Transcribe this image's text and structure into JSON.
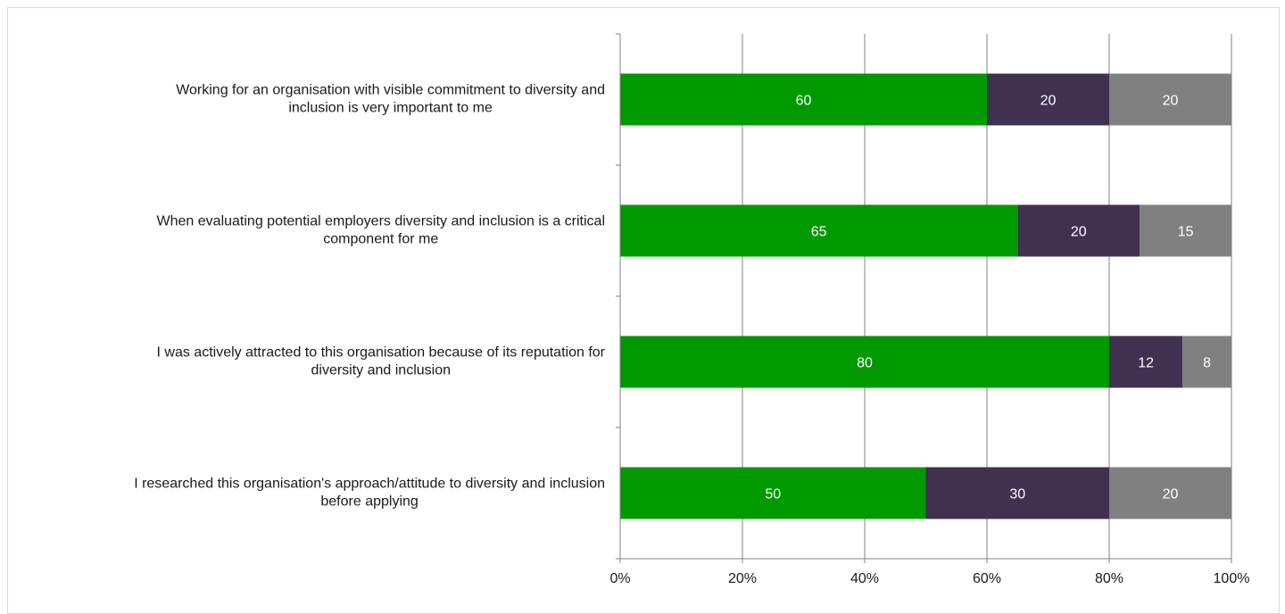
{
  "chart_data": {
    "type": "bar",
    "orientation": "horizontal",
    "stacked": "percent",
    "title": "",
    "xlabel": "",
    "ylabel": "",
    "xlim": [
      0,
      100
    ],
    "x_ticks": [
      "0%",
      "20%",
      "40%",
      "60%",
      "80%",
      "100%"
    ],
    "grid": true,
    "legend": "none",
    "categories": [
      "Working for an organisation with visible commitment to diversity and inclusion is very important to me",
      "When evaluating potential employers diversity and inclusion is a critical component for me",
      "I was actively attracted to this organisation because of its reputation for diversity and inclusion",
      "I researched this organisation's approach/attitude to diversity and inclusion before applying"
    ],
    "category_lines": [
      [
        "Working for an organisation with visible commitment to diversity and",
        "inclusion is very important to me"
      ],
      [
        "When evaluating potential employers diversity and inclusion is a critical",
        "component for me"
      ],
      [
        "I was actively attracted to this organisation because of its reputation for",
        "diversity and inclusion"
      ],
      [
        "I researched this organisation's approach/attitude to diversity and inclusion",
        "before applying"
      ]
    ],
    "series": [
      {
        "values": [
          60,
          65,
          80,
          50
        ],
        "color": "#009900"
      },
      {
        "values": [
          20,
          20,
          12,
          30
        ],
        "color": "#403151"
      },
      {
        "values": [
          20,
          15,
          8,
          20
        ],
        "color": "#808080"
      }
    ],
    "colors": {
      "gridline": "#808080",
      "axis": "#808080",
      "label_text": "#1a1a1a",
      "data_label_text": "#ffffff"
    }
  }
}
